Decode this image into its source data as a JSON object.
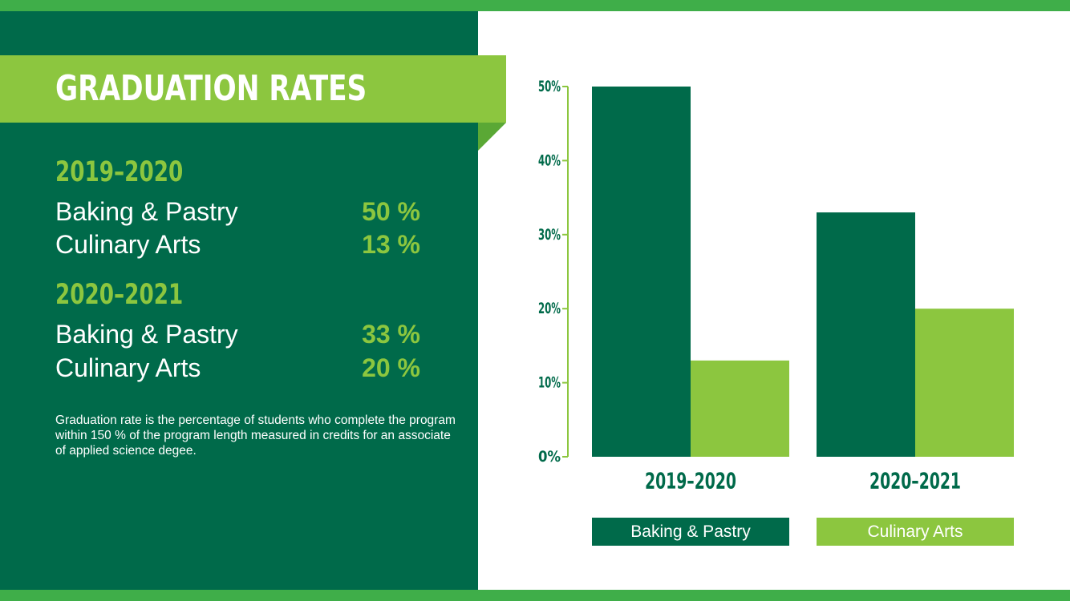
{
  "header": {
    "title": "GRADUATION RATES"
  },
  "sidebar": {
    "periods": [
      {
        "year": "2019–2020",
        "rows": [
          {
            "label": "Baking & Pastry",
            "value": "50 %"
          },
          {
            "label": "Culinary Arts",
            "value": "13 %"
          }
        ]
      },
      {
        "year": "2020–2021",
        "rows": [
          {
            "label": "Baking & Pastry",
            "value": "33 %"
          },
          {
            "label": "Culinary Arts",
            "value": "20 %"
          }
        ]
      }
    ],
    "note": "Graduation rate is the percentage of students who complete the program within 150 % of the program length measured in credits for an associate of applied science degee."
  },
  "colors": {
    "dark_green": "#006a4a",
    "light_green": "#8cc63f",
    "stripe_green": "#3fae49"
  },
  "chart_data": {
    "type": "bar",
    "categories": [
      "2019–2020",
      "2020–2021"
    ],
    "series": [
      {
        "name": "Baking & Pastry",
        "values": [
          50,
          33
        ],
        "color": "#006a4a"
      },
      {
        "name": "Culinary Arts",
        "values": [
          13,
          20
        ],
        "color": "#8cc63f"
      }
    ],
    "yticks": [
      "0%",
      "10%",
      "20%",
      "30%",
      "40%",
      "50%"
    ],
    "ytick_values": [
      0,
      10,
      20,
      30,
      40,
      50
    ],
    "ylim": [
      0,
      50
    ],
    "grid": false,
    "legend_position": "bottom"
  }
}
